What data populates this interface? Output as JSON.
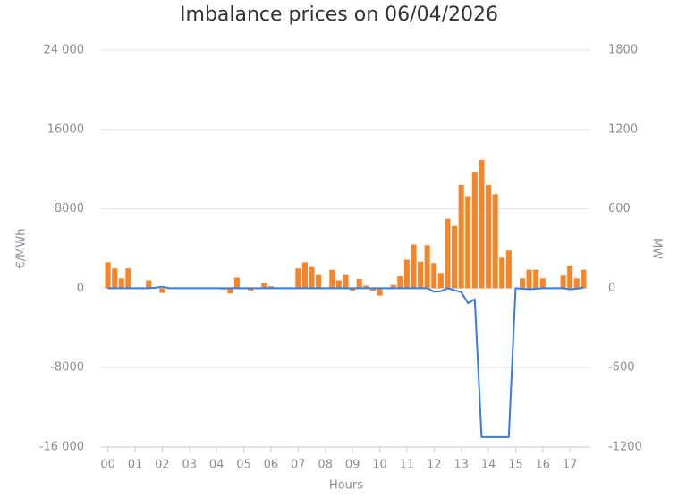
{
  "chart_data": {
    "type": "combo",
    "title": "Imbalance prices on 06/04/2026",
    "x_label": "Hours",
    "y_label": "€/MWh",
    "y2_label": "MW",
    "x": [
      0,
      0.25,
      0.5,
      0.75,
      1,
      1.25,
      1.5,
      1.75,
      2,
      2.25,
      2.5,
      2.75,
      3,
      3.25,
      3.5,
      3.75,
      4,
      4.25,
      4.5,
      4.75,
      5,
      5.25,
      5.5,
      5.75,
      6,
      6.25,
      6.5,
      6.75,
      7,
      7.25,
      7.5,
      7.75,
      8,
      8.25,
      8.5,
      8.75,
      9,
      9.25,
      9.5,
      9.75,
      10,
      10.25,
      10.5,
      10.75,
      11,
      11.25,
      11.5,
      11.75,
      12,
      12.25,
      12.5,
      12.75,
      13,
      13.25,
      13.5,
      13.75,
      14,
      14.25,
      14.5,
      14.75,
      15,
      15.25,
      15.5,
      15.75,
      16,
      16.25,
      16.5,
      16.75,
      17,
      17.25,
      17.5
    ],
    "series": [
      {
        "name": "MW",
        "type": "bar",
        "axis": "y2",
        "color": "#f5852b",
        "values": [
          196,
          150,
          75,
          150,
          0,
          0,
          60,
          0,
          -35,
          0,
          0,
          0,
          0,
          0,
          0,
          0,
          0,
          -10,
          -40,
          80,
          0,
          -20,
          0,
          40,
          15,
          0,
          0,
          0,
          150,
          196,
          160,
          100,
          0,
          140,
          60,
          100,
          -20,
          70,
          20,
          -20,
          -55,
          0,
          25,
          90,
          215,
          330,
          200,
          325,
          190,
          115,
          525,
          470,
          780,
          695,
          880,
          970,
          780,
          710,
          230,
          285,
          0,
          75,
          140,
          140,
          75,
          0,
          0,
          95,
          170,
          75,
          140
        ]
      },
      {
        "name": "€/MWh",
        "type": "line",
        "axis": "y",
        "color": "#3a7bdc",
        "values": [
          0,
          0,
          0,
          0,
          0,
          0,
          0,
          50,
          150,
          0,
          0,
          0,
          0,
          0,
          0,
          0,
          0,
          0,
          0,
          0,
          0,
          0,
          0,
          0,
          0,
          0,
          0,
          0,
          0,
          0,
          0,
          0,
          0,
          0,
          0,
          0,
          0,
          0,
          0,
          0,
          0,
          0,
          0,
          0,
          0,
          0,
          0,
          0,
          -350,
          -300,
          0,
          -200,
          -400,
          -1500,
          -1100,
          -15000,
          -15000,
          -15000,
          -15000,
          -15000,
          0,
          -50,
          -100,
          -50,
          0,
          0,
          0,
          0,
          -100,
          -50,
          50
        ]
      }
    ],
    "xlim": [
      -0.25,
      17.75
    ],
    "xticks": [
      {
        "value": 0,
        "label": "00"
      },
      {
        "value": 1,
        "label": "01"
      },
      {
        "value": 2,
        "label": "02"
      },
      {
        "value": 3,
        "label": "03"
      },
      {
        "value": 4,
        "label": "04"
      },
      {
        "value": 5,
        "label": "05"
      },
      {
        "value": 6,
        "label": "06"
      },
      {
        "value": 7,
        "label": "07"
      },
      {
        "value": 8,
        "label": "08"
      },
      {
        "value": 9,
        "label": "09"
      },
      {
        "value": 10,
        "label": "10"
      },
      {
        "value": 11,
        "label": "11"
      },
      {
        "value": 12,
        "label": "12"
      },
      {
        "value": 13,
        "label": "13"
      },
      {
        "value": 14,
        "label": "14"
      },
      {
        "value": 15,
        "label": "15"
      },
      {
        "value": 16,
        "label": "16"
      },
      {
        "value": 17,
        "label": "17"
      }
    ],
    "ylim": [
      -16000,
      24000
    ],
    "yticks": [
      {
        "value": -16000,
        "label": "-16 000"
      },
      -8000,
      0,
      8000,
      16000,
      {
        "value": 24000,
        "label": "24 000"
      }
    ],
    "y2lim": [
      -1200,
      1800
    ],
    "y2ticks": [
      -1200,
      -600,
      0,
      600,
      1200,
      1800
    ],
    "grid": true
  }
}
